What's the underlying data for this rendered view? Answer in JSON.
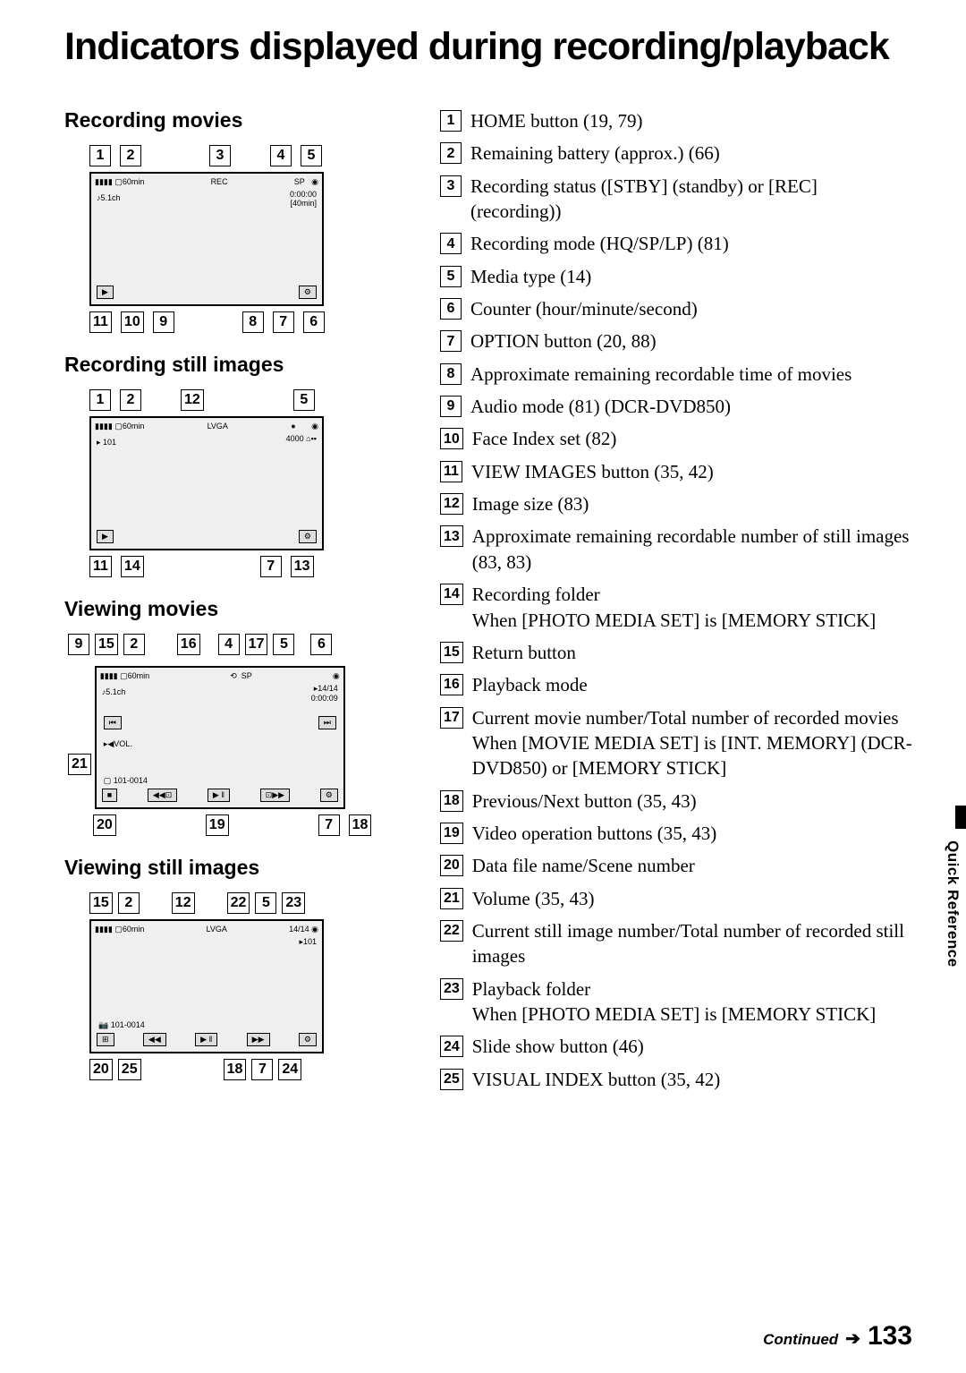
{
  "title": "Indicators displayed during recording/playback",
  "sideTab": "Quick Reference",
  "footer": {
    "continued": "Continued",
    "page": "133"
  },
  "sections": {
    "recMovies": {
      "heading": "Recording movies",
      "rowTop": [
        "1",
        "2",
        "3",
        "4",
        "5"
      ],
      "rowBot": [
        "11",
        "10",
        "9",
        "8",
        "7",
        "6"
      ],
      "screen": {
        "batt": "60min",
        "rec": "REC",
        "counter": "0:00:00",
        "remain": "[40min]",
        "audio": "♪5.1ch"
      }
    },
    "recStill": {
      "heading": "Recording still images",
      "rowTop": [
        "1",
        "2",
        "12",
        "5"
      ],
      "rowBot": [
        "11",
        "14",
        "7",
        "13"
      ],
      "screen": {
        "batt": "60min",
        "size": "LVGA",
        "count": "4000",
        "folder": "101"
      }
    },
    "viewMovies": {
      "heading": "Viewing movies",
      "rowTop": [
        "9",
        "15",
        "2",
        "16",
        "4",
        "17",
        "5",
        "6"
      ],
      "rowBot": [
        "20",
        "19",
        "7",
        "18"
      ],
      "rowSide": "21",
      "screen": {
        "batt": "60min",
        "audio": "♪5.1ch",
        "num": "14/14",
        "counter": "0:00:09",
        "file": "101-0014",
        "vol": "VOL."
      }
    },
    "viewStill": {
      "heading": "Viewing still images",
      "rowTop": [
        "15",
        "2",
        "12",
        "22",
        "5",
        "23"
      ],
      "rowBot": [
        "20",
        "25",
        "18",
        "7",
        "24"
      ],
      "screen": {
        "batt": "60min",
        "size": "LVGA",
        "num": "14/14",
        "folder": "101",
        "file": "101-0014"
      }
    }
  },
  "legend": [
    {
      "n": "1",
      "t": "HOME button (19, 79)"
    },
    {
      "n": "2",
      "t": "Remaining battery (approx.) (66)"
    },
    {
      "n": "3",
      "t": "Recording status ([STBY] (standby) or [REC] (recording))"
    },
    {
      "n": "4",
      "t": "Recording mode (HQ/SP/LP) (81)"
    },
    {
      "n": "5",
      "t": "Media type (14)"
    },
    {
      "n": "6",
      "t": "Counter (hour/minute/second)"
    },
    {
      "n": "7",
      "t": "OPTION button (20, 88)"
    },
    {
      "n": "8",
      "t": "Approximate remaining recordable time of movies"
    },
    {
      "n": "9",
      "t": "Audio mode (81) (DCR-DVD850)"
    },
    {
      "n": "10",
      "t": "Face Index set (82)"
    },
    {
      "n": "11",
      "t": "VIEW IMAGES button (35, 42)"
    },
    {
      "n": "12",
      "t": "Image size (83)"
    },
    {
      "n": "13",
      "t": "Approximate remaining recordable number of still images (83, 83)"
    },
    {
      "n": "14",
      "t": "Recording folder",
      "s": "When [PHOTO MEDIA SET] is [MEMORY STICK]"
    },
    {
      "n": "15",
      "t": "Return button"
    },
    {
      "n": "16",
      "t": "Playback mode"
    },
    {
      "n": "17",
      "t": "Current movie number/Total number of recorded movies",
      "s": "When [MOVIE MEDIA SET] is [INT. MEMORY] (DCR-DVD850) or [MEMORY STICK]"
    },
    {
      "n": "18",
      "t": "Previous/Next button (35, 43)"
    },
    {
      "n": "19",
      "t": "Video operation buttons (35, 43)"
    },
    {
      "n": "20",
      "t": "Data file name/Scene number"
    },
    {
      "n": "21",
      "t": "Volume (35, 43)"
    },
    {
      "n": "22",
      "t": "Current still image number/Total number of recorded still images"
    },
    {
      "n": "23",
      "t": "Playback folder",
      "s": "When [PHOTO MEDIA SET] is [MEMORY STICK]"
    },
    {
      "n": "24",
      "t": "Slide show button (46)"
    },
    {
      "n": "25",
      "t": "VISUAL INDEX button (35, 42)"
    }
  ]
}
